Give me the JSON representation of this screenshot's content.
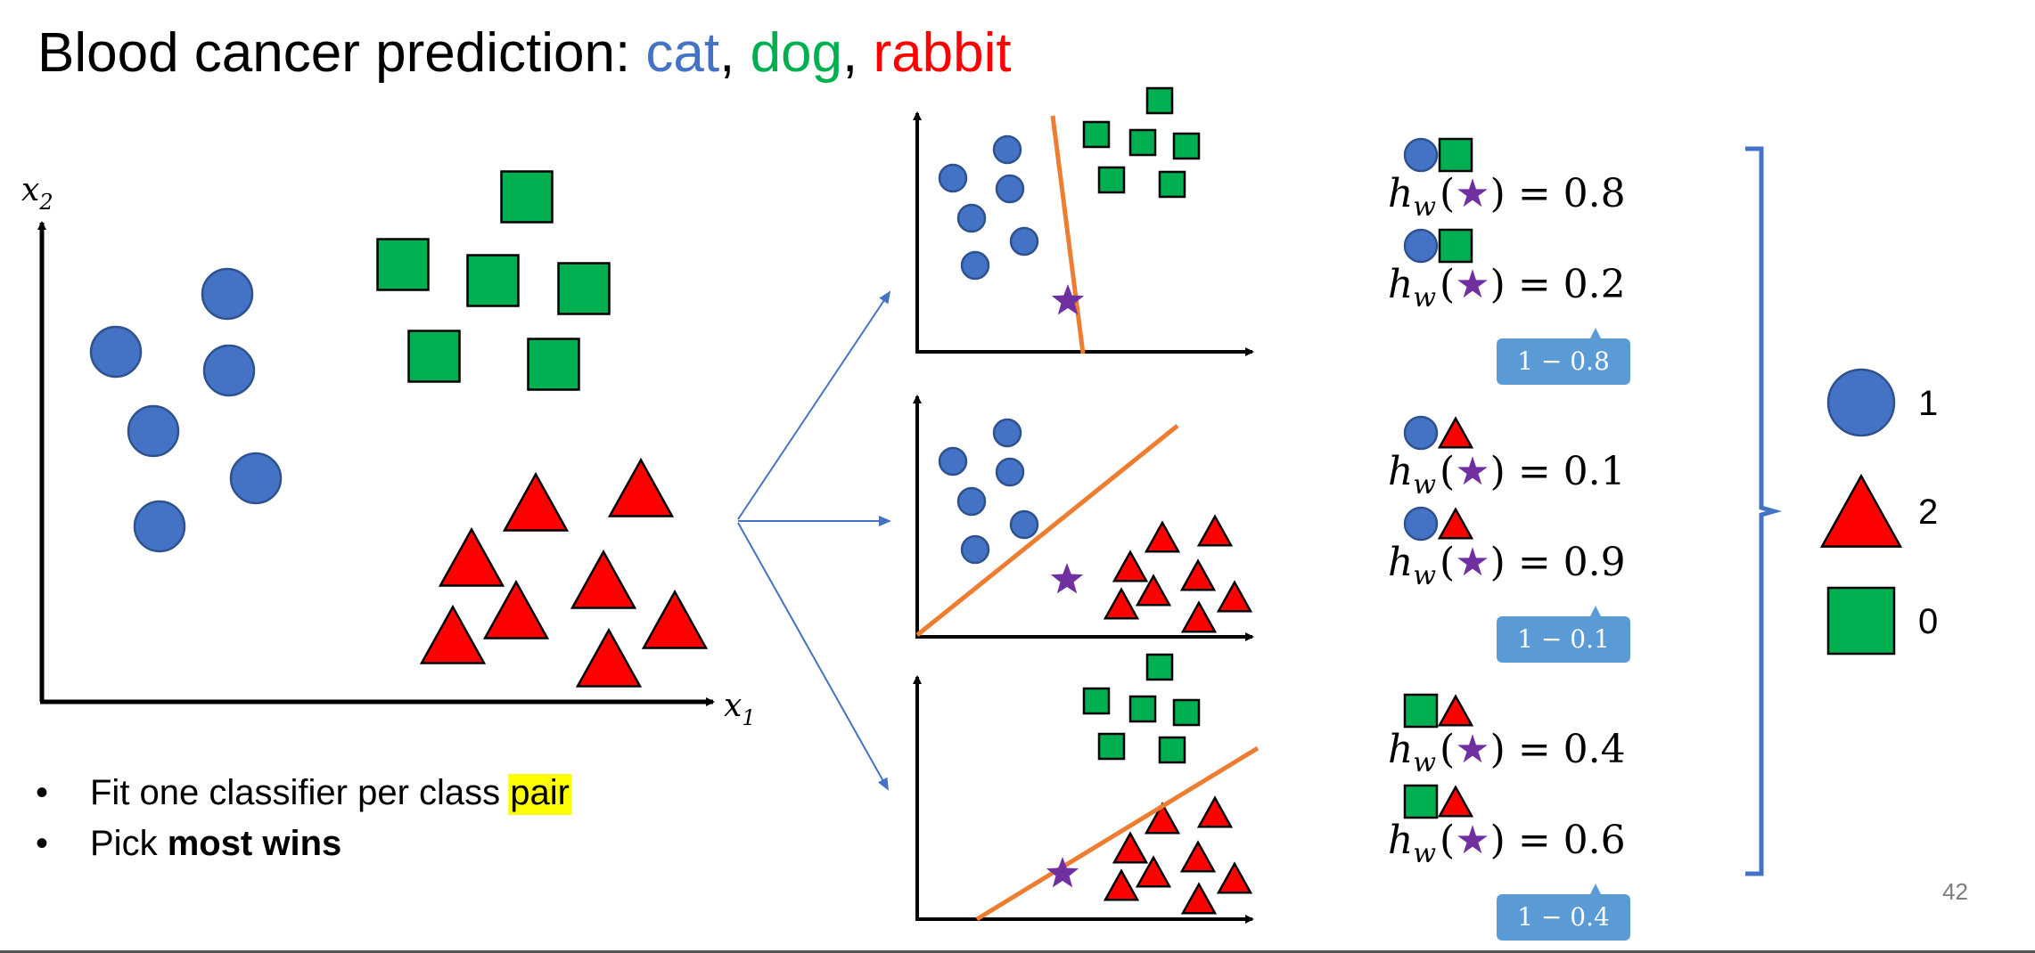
{
  "title": {
    "prefix": "Blood cancer prediction: ",
    "classes": [
      {
        "text": "cat",
        "color": "#4472C4"
      },
      {
        "text": "dog",
        "color": "#00B050"
      },
      {
        "text": "rabbit",
        "color": "#FF0000"
      }
    ],
    "separator": ", "
  },
  "axes": {
    "x_label": "x",
    "x_sub": "1",
    "y_label": "x",
    "y_sub": "2"
  },
  "bullets": [
    {
      "pre": "Fit one classifier per class ",
      "highlight": "pair",
      "bold": "",
      "post": ""
    },
    {
      "pre": "Pick ",
      "highlight": "",
      "bold": "most wins",
      "post": ""
    }
  ],
  "classifiers": [
    {
      "pair": [
        "circle",
        "square"
      ],
      "scores": [
        {
          "icon": "circle",
          "value": "= 0.8"
        },
        {
          "icon": "square",
          "value": "= 0.2"
        }
      ],
      "callout": "1 − 0.8"
    },
    {
      "pair": [
        "circle",
        "triangle"
      ],
      "scores": [
        {
          "icon": "circle",
          "value": "= 0.1"
        },
        {
          "icon": "triangle",
          "value": "= 0.9"
        }
      ],
      "callout": "1 − 0.1"
    },
    {
      "pair": [
        "square",
        "triangle"
      ],
      "scores": [
        {
          "icon": "square",
          "value": "= 0.4"
        },
        {
          "icon": "triangle",
          "value": "= 0.6"
        }
      ],
      "callout": "1 − 0.4"
    }
  ],
  "hypothesis": {
    "h": "h",
    "sub": "w",
    "open": "(",
    "close": ")",
    "star": "★"
  },
  "legend": [
    {
      "shape": "circle",
      "label": "1"
    },
    {
      "shape": "triangle",
      "label": "2"
    },
    {
      "shape": "square",
      "label": "0"
    }
  ],
  "colors": {
    "circle": "#4472C4",
    "square": "#00B050",
    "triangle": "#FF0000",
    "star": "#7030A0",
    "boundary": "#ED7D31",
    "arrow": "#4472C4",
    "callout": "#5B9BD5",
    "highlight": "#FFFF00"
  },
  "page_number": "42"
}
